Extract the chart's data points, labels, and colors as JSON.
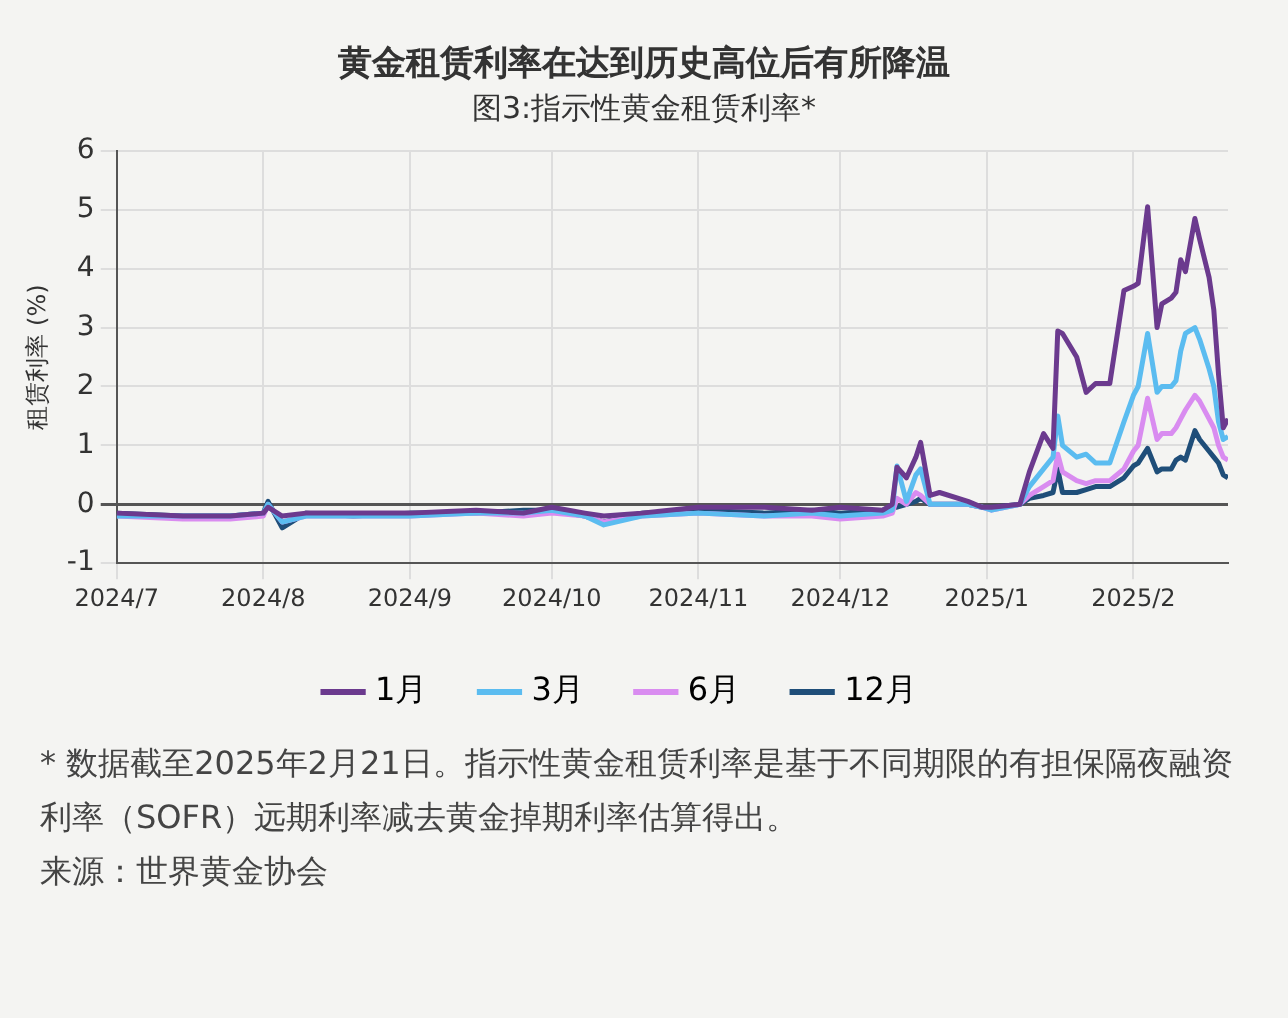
{
  "chart_data": {
    "type": "line",
    "title": "黄金租赁利率在达到历史高位后有所降温",
    "subtitle": "图3:指示性黄金租赁利率*",
    "ylabel": "租赁利率 (%)",
    "x": [
      "2024-07-01",
      "2024-07-15",
      "2024-07-25",
      "2024-08-01",
      "2024-08-02",
      "2024-08-05",
      "2024-08-10",
      "2024-08-20",
      "2024-09-01",
      "2024-09-15",
      "2024-09-25",
      "2024-10-01",
      "2024-10-08",
      "2024-10-12",
      "2024-10-20",
      "2024-11-01",
      "2024-11-15",
      "2024-11-25",
      "2024-12-01",
      "2024-12-10",
      "2024-12-12",
      "2024-12-13",
      "2024-12-15",
      "2024-12-17",
      "2024-12-18",
      "2024-12-20",
      "2024-12-22",
      "2024-12-28",
      "2024-12-31",
      "2025-01-02",
      "2025-01-08",
      "2025-01-10",
      "2025-01-13",
      "2025-01-15",
      "2025-01-16",
      "2025-01-17",
      "2025-01-20",
      "2025-01-22",
      "2025-01-24",
      "2025-01-27",
      "2025-01-30",
      "2025-02-01",
      "2025-02-02",
      "2025-02-04",
      "2025-02-06",
      "2025-02-07",
      "2025-02-09",
      "2025-02-10",
      "2025-02-11",
      "2025-02-12",
      "2025-02-14",
      "2025-02-15",
      "2025-02-17",
      "2025-02-18",
      "2025-02-19",
      "2025-02-20",
      "2025-02-21"
    ],
    "series": [
      {
        "name": "1月",
        "color": "#6b3a8e",
        "values": [
          -0.15,
          -0.2,
          -0.2,
          -0.15,
          -0.05,
          -0.2,
          -0.15,
          -0.15,
          -0.15,
          -0.1,
          -0.15,
          -0.05,
          -0.15,
          -0.2,
          -0.15,
          -0.05,
          -0.05,
          -0.1,
          -0.05,
          -0.1,
          0.0,
          0.63,
          0.45,
          0.8,
          1.05,
          0.15,
          0.2,
          0.05,
          -0.05,
          -0.05,
          0.0,
          0.55,
          1.2,
          0.95,
          2.94,
          2.9,
          2.5,
          1.9,
          2.05,
          2.05,
          3.63,
          3.7,
          3.75,
          5.05,
          3.0,
          3.4,
          3.5,
          3.6,
          4.15,
          3.95,
          4.85,
          4.5,
          3.85,
          3.3,
          2.2,
          1.3,
          1.45
        ]
      },
      {
        "name": "3月",
        "color": "#5bbcf0",
        "values": [
          -0.2,
          -0.2,
          -0.2,
          -0.15,
          0.0,
          -0.3,
          -0.2,
          -0.2,
          -0.2,
          -0.15,
          -0.15,
          -0.1,
          -0.2,
          -0.35,
          -0.2,
          -0.15,
          -0.2,
          -0.15,
          -0.2,
          -0.15,
          -0.1,
          0.65,
          0.05,
          0.5,
          0.6,
          0.0,
          0.0,
          0.0,
          -0.05,
          -0.1,
          0.0,
          0.3,
          0.6,
          0.8,
          1.5,
          1.0,
          0.8,
          0.85,
          0.7,
          0.7,
          1.4,
          1.85,
          2.0,
          2.9,
          1.9,
          2.0,
          2.0,
          2.1,
          2.6,
          2.9,
          3.0,
          2.8,
          2.3,
          2.0,
          1.4,
          1.1,
          1.15
        ]
      },
      {
        "name": "6月",
        "color": "#d98cf0",
        "values": [
          -0.2,
          -0.25,
          -0.25,
          -0.2,
          0.0,
          -0.3,
          -0.2,
          -0.2,
          -0.2,
          -0.15,
          -0.2,
          -0.15,
          -0.2,
          -0.3,
          -0.2,
          -0.15,
          -0.2,
          -0.2,
          -0.25,
          -0.2,
          -0.15,
          0.1,
          0.0,
          0.2,
          0.15,
          0.0,
          0.0,
          0.0,
          -0.05,
          -0.1,
          0.0,
          0.15,
          0.3,
          0.4,
          0.85,
          0.55,
          0.4,
          0.35,
          0.4,
          0.4,
          0.6,
          0.9,
          1.0,
          1.8,
          1.1,
          1.2,
          1.2,
          1.3,
          1.45,
          1.6,
          1.85,
          1.75,
          1.45,
          1.3,
          1.0,
          0.8,
          0.75
        ]
      },
      {
        "name": "12月",
        "color": "#1f4e79",
        "values": [
          -0.15,
          -0.2,
          -0.2,
          -0.15,
          0.05,
          -0.4,
          -0.15,
          -0.2,
          -0.15,
          -0.15,
          -0.1,
          -0.1,
          -0.2,
          -0.3,
          -0.15,
          -0.1,
          -0.15,
          -0.1,
          -0.15,
          -0.1,
          -0.05,
          -0.05,
          0.0,
          0.05,
          0.1,
          0.0,
          0.0,
          0.0,
          -0.05,
          -0.05,
          0.0,
          0.1,
          0.15,
          0.2,
          0.6,
          0.2,
          0.2,
          0.25,
          0.3,
          0.3,
          0.45,
          0.65,
          0.7,
          0.95,
          0.55,
          0.6,
          0.6,
          0.75,
          0.8,
          0.75,
          1.25,
          1.1,
          0.9,
          0.8,
          0.7,
          0.5,
          0.45
        ]
      }
    ],
    "xlim": [
      "2024-07-01",
      "2025-02-21"
    ],
    "xticks": [
      {
        "value": "2024-07-01",
        "label": "2024/7"
      },
      {
        "value": "2024-08-01",
        "label": "2024/8"
      },
      {
        "value": "2024-09-01",
        "label": "2024/9"
      },
      {
        "value": "2024-10-01",
        "label": "2024/10"
      },
      {
        "value": "2024-11-01",
        "label": "2024/11"
      },
      {
        "value": "2024-12-01",
        "label": "2024/12"
      },
      {
        "value": "2025-01-01",
        "label": "2025/1"
      },
      {
        "value": "2025-02-01",
        "label": "2025/2"
      }
    ],
    "ylim": [
      -1,
      6
    ],
    "yticks": [
      -1,
      0,
      1,
      2,
      3,
      4,
      5,
      6
    ],
    "grid": true,
    "legend": "bottom",
    "marker": "none",
    "line_style": "solid",
    "annotations": [
      "* 数据截至2025年2月21日。指示性黄金租赁利率是基于不同期限的有担保隔夜融资利率（SOFR）远期利率减去黄金掉期利率估算得出。",
      "来源：世界黄金协会"
    ]
  }
}
